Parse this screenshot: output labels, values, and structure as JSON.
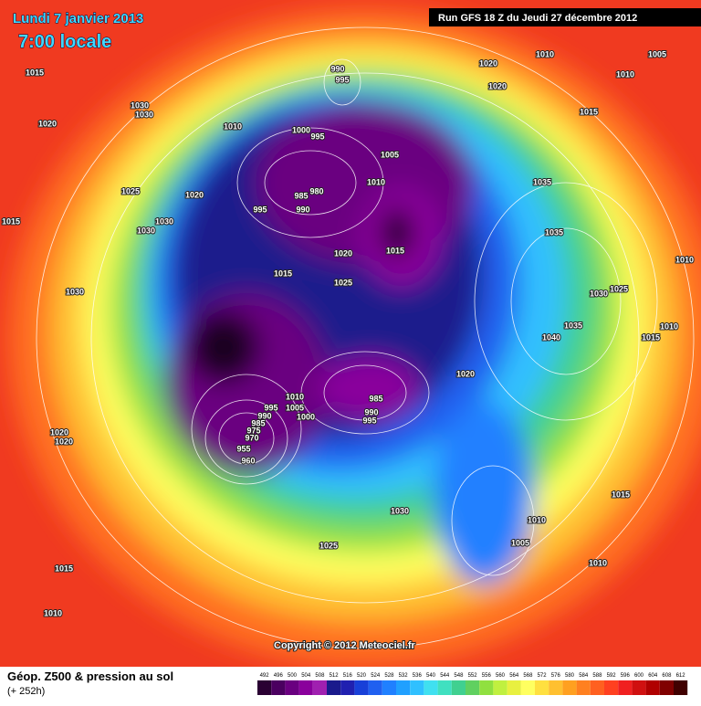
{
  "header": {
    "date": "Lundi 7 janvier 2013",
    "local_time": "7:00 locale",
    "run": "Run GFS 18 Z du Jeudi 27 décembre 2012"
  },
  "copyright": "Copyright © 2012 Meteociel.fr",
  "footer": {
    "title": "Géop. Z500 & pression au sol",
    "lead_time": "(+ 252h)"
  },
  "colorbar": {
    "labels": [
      492,
      496,
      500,
      504,
      508,
      512,
      516,
      520,
      524,
      528,
      532,
      536,
      540,
      544,
      548,
      552,
      556,
      560,
      564,
      568,
      572,
      576,
      580,
      584,
      588,
      592,
      596,
      600,
      604,
      608,
      612
    ],
    "colors": [
      "#2a0033",
      "#4b0060",
      "#6a0080",
      "#8a009c",
      "#a020b0",
      "#1a1a8c",
      "#2020b0",
      "#1840d8",
      "#2060f0",
      "#2080ff",
      "#20a0ff",
      "#30c0ff",
      "#40e0f0",
      "#40e0c0",
      "#40d090",
      "#60d060",
      "#90e040",
      "#c0f040",
      "#e8f040",
      "#ffff60",
      "#ffe040",
      "#ffc030",
      "#ffa020",
      "#ff8020",
      "#ff6020",
      "#ff4020",
      "#f02020",
      "#d01010",
      "#b00000",
      "#800000",
      "#400000"
    ]
  },
  "isobar_labels": [
    "1015",
    "990",
    "995",
    "1020",
    "1010",
    "1005",
    "1020",
    "1010",
    "1030",
    "1030",
    "1020",
    "1010",
    "1015",
    "1000",
    "995",
    "1005",
    "1025",
    "1020",
    "985",
    "980",
    "1010",
    "1035",
    "990",
    "995",
    "1015",
    "1030",
    "1030",
    "1015",
    "1035",
    "1020",
    "1010",
    "1015",
    "1025",
    "1030",
    "1030",
    "1025",
    "1035",
    "1010",
    "1040",
    "1015",
    "1020",
    "1010",
    "985",
    "1005",
    "990",
    "1000",
    "995",
    "995",
    "990",
    "985",
    "975",
    "970",
    "955",
    "960",
    "1020",
    "1020",
    "1030",
    "1015",
    "1010",
    "1005",
    "1025",
    "1015",
    "1010",
    "1010"
  ]
}
